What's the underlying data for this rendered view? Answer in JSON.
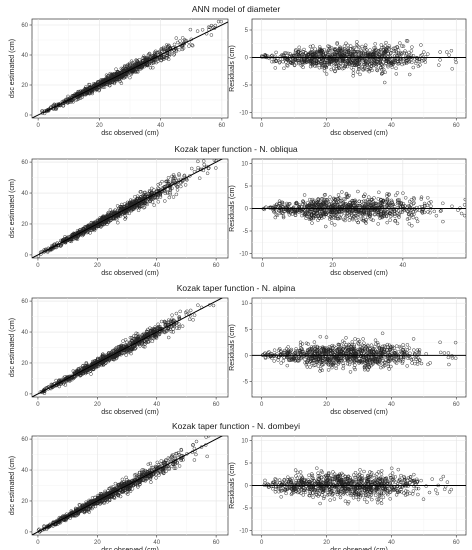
{
  "chart_data": [
    {
      "type": "scatter",
      "title": "ANN model of diameter",
      "panels": [
        {
          "kind": "fit",
          "xlabel": "dsc observed (cm)",
          "ylabel": "dsc estimated (cm)",
          "xlim": [
            -2,
            62
          ],
          "ylim": [
            -2,
            64
          ],
          "xticks": [
            0,
            20,
            40,
            60
          ],
          "yticks": [
            0,
            20,
            40,
            60
          ],
          "reference_line": {
            "x": [
              -2,
              62
            ],
            "y": [
              -2,
              62
            ]
          },
          "sample_points": [
            [
              2,
              2.5
            ],
            [
              5,
              4.8
            ],
            [
              10,
              10.4
            ],
            [
              15,
              14.6
            ],
            [
              20,
              20.5
            ],
            [
              25,
              24.7
            ],
            [
              30,
              30.6
            ],
            [
              35,
              34.5
            ],
            [
              40,
              40.8
            ],
            [
              45,
              44.3
            ],
            [
              50,
              50.5
            ],
            [
              55,
              54.2
            ]
          ]
        },
        {
          "kind": "residual",
          "xlabel": "dsc observed (cm)",
          "ylabel": "Residuals (cm)",
          "xlim": [
            -3,
            63
          ],
          "ylim": [
            -11,
            7
          ],
          "xticks": [
            0,
            20,
            40,
            60
          ],
          "yticks": [
            -10,
            -5,
            0,
            5
          ],
          "reference_line": {
            "y": 0
          },
          "sample_points": [
            [
              1,
              0.5
            ],
            [
              8,
              -1.5
            ],
            [
              15,
              2
            ],
            [
              20,
              -3
            ],
            [
              25,
              1.5
            ],
            [
              30,
              -2
            ],
            [
              35,
              2.5
            ],
            [
              40,
              -1
            ],
            [
              45,
              3
            ],
            [
              50,
              -0.5
            ],
            [
              55,
              1
            ]
          ]
        }
      ]
    },
    {
      "type": "scatter",
      "title": "Kozak taper function - N. obliqua",
      "panels": [
        {
          "kind": "fit",
          "xlabel": "dsc observed (cm)",
          "ylabel": "dsc estimated (cm)",
          "xlim": [
            -2,
            64
          ],
          "ylim": [
            -2,
            62
          ],
          "xticks": [
            0,
            20,
            40,
            60
          ],
          "yticks": [
            0,
            20,
            40,
            60
          ],
          "reference_line": {
            "x": [
              -2,
              64
            ],
            "y": [
              -2,
              64
            ]
          },
          "sample_points": [
            [
              2,
              2
            ],
            [
              5,
              5.3
            ],
            [
              10,
              9.7
            ],
            [
              15,
              15.4
            ],
            [
              20,
              19.6
            ],
            [
              25,
              25.5
            ],
            [
              30,
              29.4
            ],
            [
              35,
              35.6
            ],
            [
              40,
              39.5
            ],
            [
              45,
              45.8
            ],
            [
              50,
              49.6
            ],
            [
              56,
              56.4
            ]
          ]
        },
        {
          "kind": "residual",
          "xlabel": "dsc observed (cm)",
          "ylabel": "Residuals (cm)",
          "xlim": [
            -3,
            58
          ],
          "ylim": [
            -11,
            11
          ],
          "xticks": [
            0,
            20,
            40
          ],
          "yticks": [
            -10,
            -5,
            0,
            5,
            10
          ],
          "reference_line": {
            "y": 0
          },
          "sample_points": [
            [
              1,
              0.3
            ],
            [
              6,
              -2
            ],
            [
              12,
              3
            ],
            [
              18,
              -4
            ],
            [
              24,
              2.5
            ],
            [
              30,
              -2
            ],
            [
              36,
              3
            ],
            [
              42,
              -1
            ],
            [
              48,
              1.5
            ],
            [
              54,
              0.5
            ]
          ]
        }
      ]
    },
    {
      "type": "scatter",
      "title": "Kozak taper function - N. alpina",
      "panels": [
        {
          "kind": "fit",
          "xlabel": "dsc observed (cm)",
          "ylabel": "dsc estimated (cm)",
          "xlim": [
            -2,
            64
          ],
          "ylim": [
            -2,
            62
          ],
          "xticks": [
            0,
            20,
            40,
            60
          ],
          "yticks": [
            0,
            20,
            40,
            60
          ],
          "reference_line": {
            "x": [
              -2,
              64
            ],
            "y": [
              -2,
              64
            ]
          },
          "sample_points": [
            [
              2,
              2.4
            ],
            [
              5,
              4.6
            ],
            [
              10,
              10.6
            ],
            [
              15,
              14.5
            ],
            [
              20,
              20.7
            ],
            [
              25,
              24.4
            ],
            [
              30,
              30.8
            ],
            [
              35,
              34.3
            ],
            [
              40,
              40.5
            ],
            [
              45,
              44.2
            ],
            [
              50,
              51
            ]
          ]
        },
        {
          "kind": "residual",
          "xlabel": "dsc observed (cm)",
          "ylabel": "Residuals (cm)",
          "xlim": [
            -3,
            63
          ],
          "ylim": [
            -8,
            11
          ],
          "xticks": [
            0,
            20,
            40,
            60
          ],
          "yticks": [
            -5,
            0,
            5,
            10
          ],
          "reference_line": {
            "y": 0
          },
          "sample_points": [
            [
              1,
              0.4
            ],
            [
              6,
              -1.5
            ],
            [
              12,
              2.5
            ],
            [
              18,
              -3
            ],
            [
              24,
              2
            ],
            [
              30,
              -1.5
            ],
            [
              36,
              2
            ],
            [
              42,
              -0.5
            ],
            [
              48,
              1
            ],
            [
              55,
              2.5
            ]
          ]
        }
      ]
    },
    {
      "type": "scatter",
      "title": "Kozak taper function - N. dombeyi",
      "panels": [
        {
          "kind": "fit",
          "xlabel": "dsc observed (cm)",
          "ylabel": "dsc estimated (cm)",
          "xlim": [
            -2,
            64
          ],
          "ylim": [
            -2,
            62
          ],
          "xticks": [
            0,
            20,
            40,
            60
          ],
          "yticks": [
            0,
            20,
            40,
            60
          ],
          "reference_line": {
            "x": [
              -2,
              64
            ],
            "y": [
              -2,
              64
            ]
          },
          "sample_points": [
            [
              2,
              2
            ],
            [
              5,
              5.4
            ],
            [
              10,
              9.6
            ],
            [
              15,
              15.5
            ],
            [
              20,
              19.5
            ],
            [
              25,
              25.6
            ],
            [
              30,
              29.3
            ],
            [
              35,
              35.7
            ],
            [
              40,
              39.4
            ],
            [
              45,
              45.9
            ],
            [
              52,
              51.5
            ]
          ]
        },
        {
          "kind": "residual",
          "xlabel": "dsc observed (cm)",
          "ylabel": "Residuals (cm)",
          "xlim": [
            -3,
            63
          ],
          "ylim": [
            -11,
            11
          ],
          "xticks": [
            0,
            20,
            40,
            60
          ],
          "yticks": [
            -10,
            -5,
            0,
            5,
            10
          ],
          "reference_line": {
            "y": 0
          },
          "sample_points": [
            [
              1,
              0.5
            ],
            [
              6,
              -2.5
            ],
            [
              12,
              3
            ],
            [
              18,
              -4
            ],
            [
              24,
              2.5
            ],
            [
              30,
              -2
            ],
            [
              36,
              3
            ],
            [
              42,
              -1.5
            ],
            [
              48,
              1
            ],
            [
              56,
              2
            ]
          ]
        }
      ]
    }
  ]
}
